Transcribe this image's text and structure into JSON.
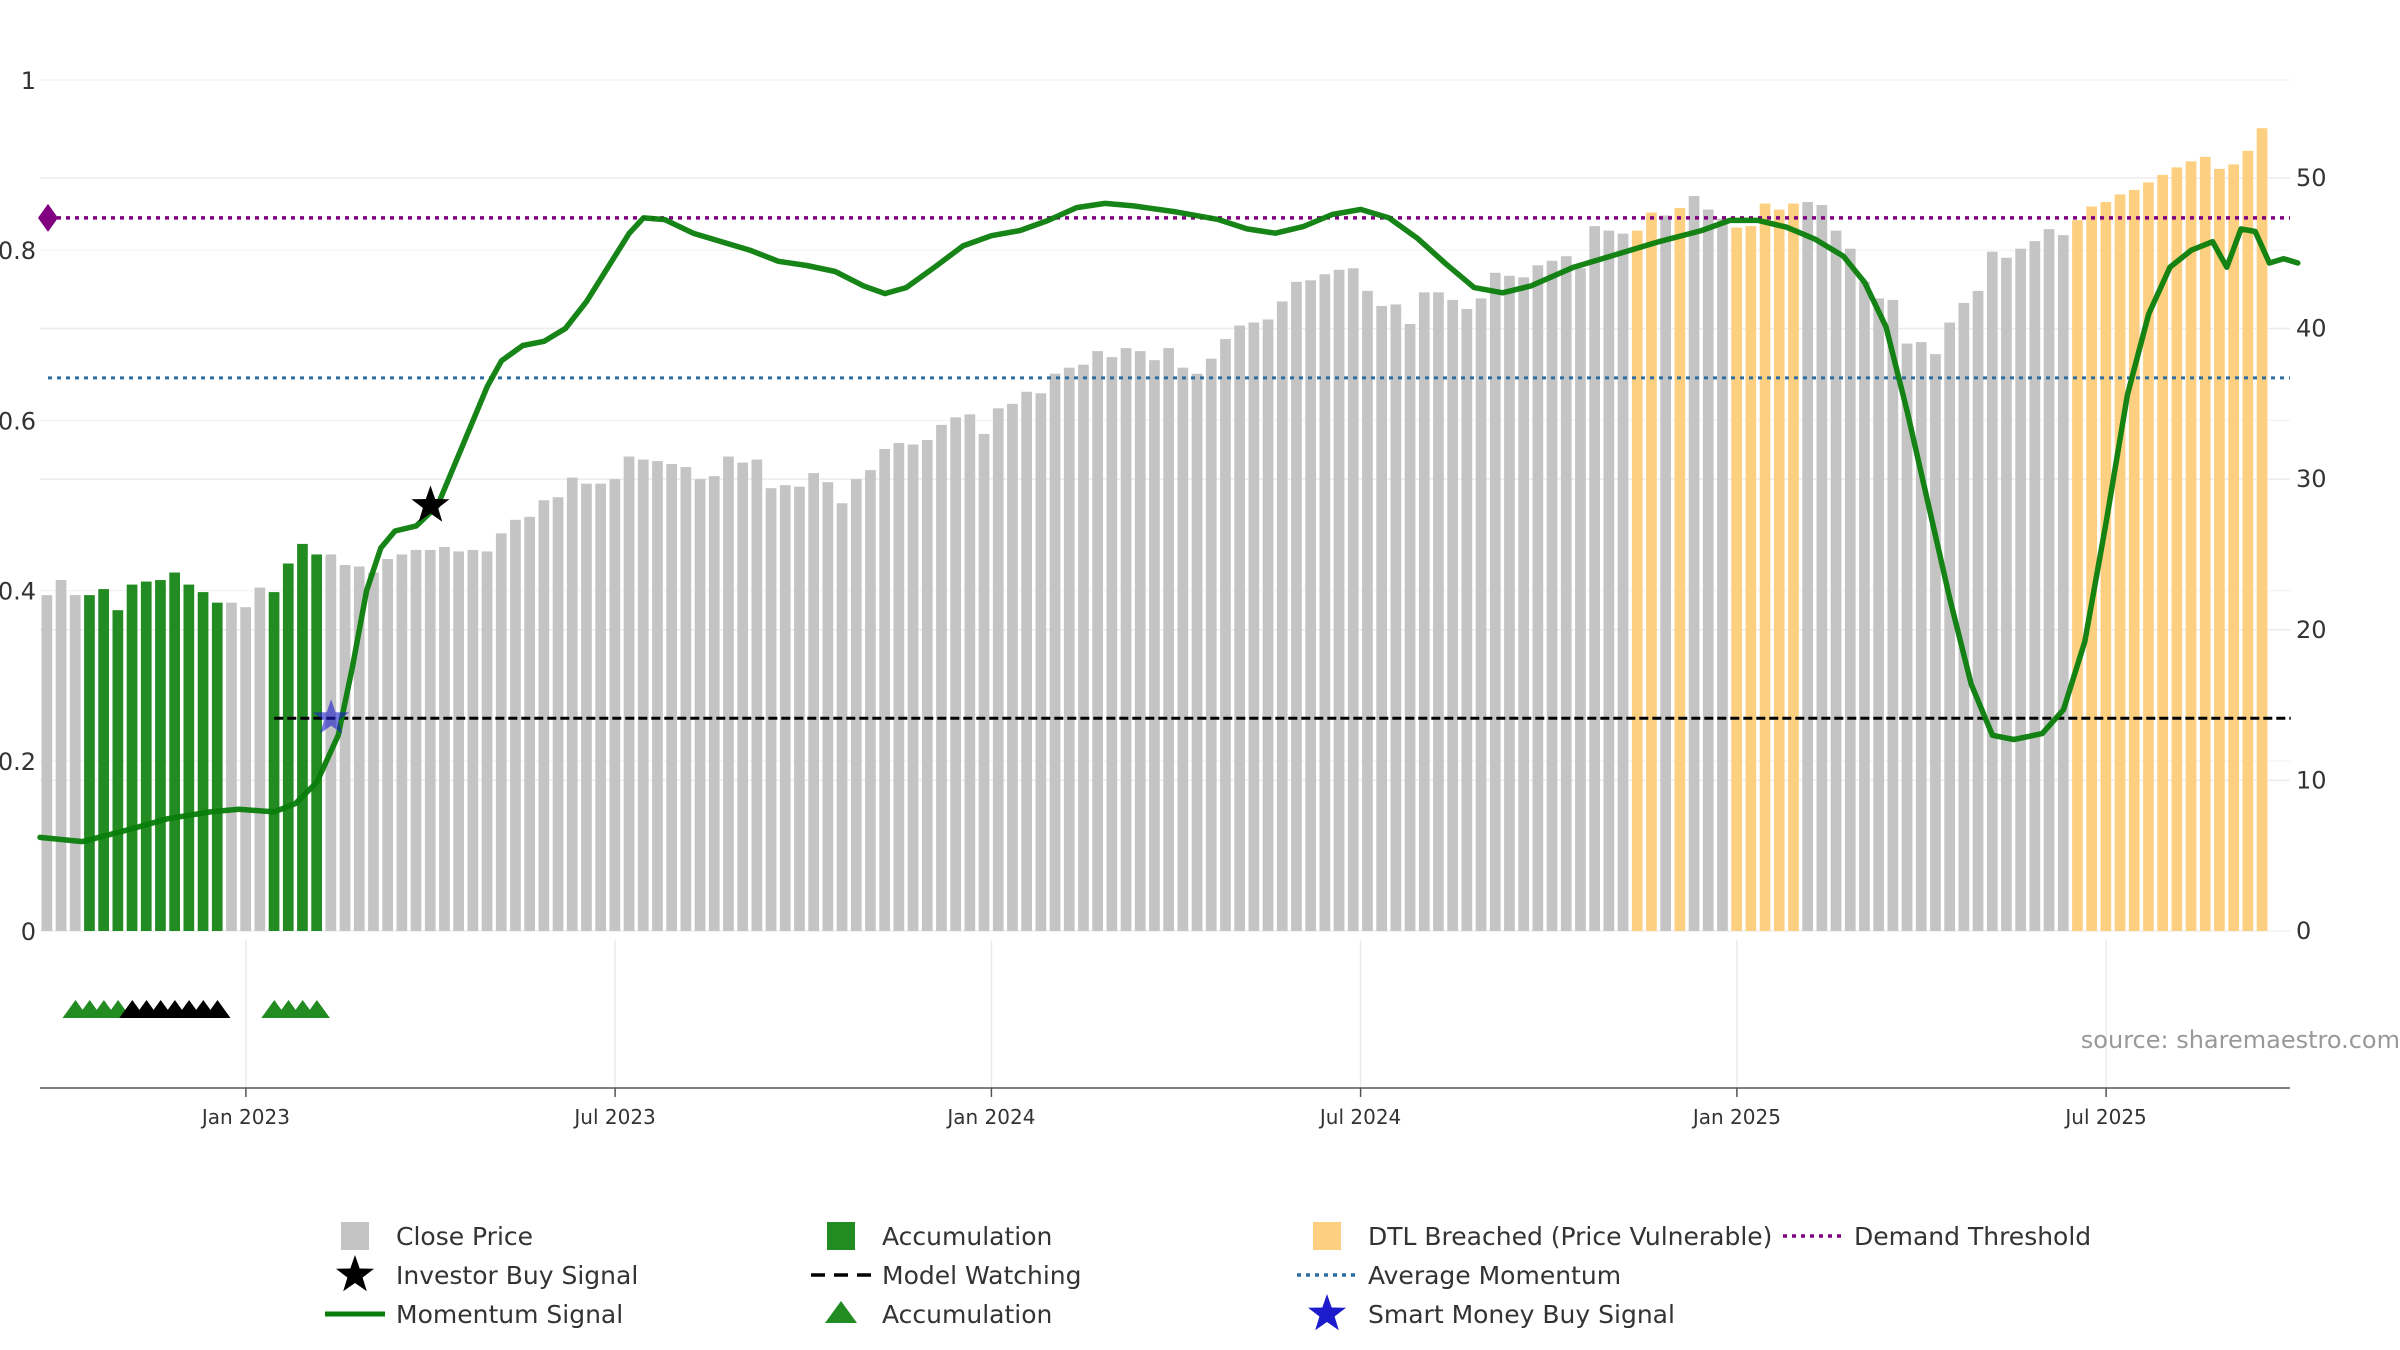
{
  "source_text": "source: sharemaestro.com",
  "colors": {
    "close": "#c4c4c4",
    "accumulation": "#228b22",
    "dtl": "#fdd081",
    "momentum": "#0a7d0a",
    "average": "#2e6e9e",
    "demand": "#800080",
    "watching": "#000000",
    "smart_money": "#1c1ccc"
  },
  "chart_data": {
    "type": "bar",
    "title": "",
    "xlabel": "",
    "ylabel": "",
    "y_left": {
      "ticks": [
        0,
        0.2,
        0.4,
        0.6,
        0.8,
        1
      ],
      "tick_labels": [
        "0",
        "0.2",
        "0.4",
        "0.6",
        "0.8",
        "1"
      ],
      "range": [
        0,
        1
      ]
    },
    "y_right": {
      "ticks": [
        0,
        10,
        20,
        30,
        40,
        50
      ],
      "tick_labels": [
        "0",
        "10",
        "20",
        "30",
        "40",
        "50"
      ],
      "range": [
        0,
        56.5
      ]
    },
    "x_ticks": [
      {
        "label": "Jan 2023",
        "week": 14.5
      },
      {
        "label": "Jul 2023",
        "week": 40.5
      },
      {
        "label": "Jan 2024",
        "week": 67
      },
      {
        "label": "Jul 2024",
        "week": 93
      },
      {
        "label": "Jan 2025",
        "week": 119.5
      },
      {
        "label": "Jul 2025",
        "week": 145.5
      }
    ],
    "close_price": [
      22.3,
      23.3,
      22.3,
      22.3,
      22.7,
      21.3,
      23.0,
      23.2,
      23.3,
      23.8,
      23.0,
      22.5,
      21.8,
      21.8,
      21.5,
      22.8,
      22.5,
      24.4,
      25.7,
      25.0,
      25.0,
      24.3,
      24.2,
      23.8,
      24.7,
      25.0,
      25.3,
      25.3,
      25.5,
      25.2,
      25.3,
      25.2,
      26.4,
      27.3,
      27.5,
      28.6,
      28.8,
      30.1,
      29.7,
      29.7,
      30.0,
      31.5,
      31.3,
      31.2,
      31.0,
      30.8,
      30.0,
      30.2,
      31.5,
      31.1,
      31.3,
      29.4,
      29.6,
      29.5,
      30.4,
      29.8,
      28.4,
      30.0,
      30.6,
      32.0,
      32.4,
      32.3,
      32.6,
      33.6,
      34.1,
      34.3,
      33.0,
      34.7,
      35.0,
      35.8,
      35.7,
      37.0,
      37.4,
      37.6,
      38.5,
      38.1,
      38.7,
      38.5,
      37.9,
      38.7,
      37.4,
      37.0,
      38.0,
      39.3,
      40.2,
      40.4,
      40.6,
      41.8,
      43.1,
      43.2,
      43.6,
      43.9,
      44.0,
      42.5,
      41.5,
      41.6,
      40.3,
      42.4,
      42.4,
      41.9,
      41.3,
      42.0,
      43.7,
      43.5,
      43.4,
      44.2,
      44.5,
      44.8,
      44.0,
      46.8,
      46.5,
      46.3,
      46.5,
      47.7,
      47.5,
      48.0,
      48.8,
      47.9,
      47.3,
      46.7,
      46.8,
      48.3,
      47.9,
      48.3,
      48.4,
      48.2,
      46.5,
      45.3,
      43.1,
      42.0,
      41.9,
      39.0,
      39.1,
      38.3,
      40.4,
      41.7,
      42.5,
      45.1,
      44.7,
      45.3,
      45.8,
      46.6,
      46.2,
      47.2,
      48.1,
      48.4,
      48.9,
      49.2,
      49.7,
      50.2,
      50.7,
      51.1,
      51.4,
      50.6,
      50.9,
      51.8,
      53.3
    ],
    "bar_category": [
      "c",
      "c",
      "c",
      "a",
      "a",
      "a",
      "a",
      "a",
      "a",
      "a",
      "a",
      "a",
      "a",
      "c",
      "c",
      "c",
      "a",
      "a",
      "a",
      "a",
      "c",
      "c",
      "c",
      "c",
      "c",
      "c",
      "c",
      "c",
      "c",
      "c",
      "c",
      "c",
      "c",
      "c",
      "c",
      "c",
      "c",
      "c",
      "c",
      "c",
      "c",
      "c",
      "c",
      "c",
      "c",
      "c",
      "c",
      "c",
      "c",
      "c",
      "c",
      "c",
      "c",
      "c",
      "c",
      "c",
      "c",
      "c",
      "c",
      "c",
      "c",
      "c",
      "c",
      "c",
      "c",
      "c",
      "c",
      "c",
      "c",
      "c",
      "c",
      "c",
      "c",
      "c",
      "c",
      "c",
      "c",
      "c",
      "c",
      "c",
      "c",
      "c",
      "c",
      "c",
      "c",
      "c",
      "c",
      "c",
      "c",
      "c",
      "c",
      "c",
      "c",
      "c",
      "c",
      "c",
      "c",
      "c",
      "c",
      "c",
      "c",
      "c",
      "c",
      "c",
      "c",
      "c",
      "c",
      "c",
      "c",
      "c",
      "c",
      "c",
      "d",
      "d",
      "c",
      "d",
      "c",
      "c",
      "c",
      "d",
      "d",
      "d",
      "d",
      "d",
      "c",
      "c",
      "c",
      "c",
      "c",
      "c",
      "c",
      "c",
      "c",
      "c",
      "c",
      "c",
      "c",
      "c",
      "c",
      "c",
      "c",
      "c",
      "c",
      "d",
      "d",
      "d",
      "d",
      "d",
      "d",
      "d",
      "d",
      "d",
      "d",
      "d",
      "d",
      "d",
      "d"
    ],
    "momentum": [
      [
        0,
        0.11
      ],
      [
        3,
        0.105
      ],
      [
        6,
        0.118
      ],
      [
        9,
        0.132
      ],
      [
        12,
        0.14
      ],
      [
        14,
        0.143
      ],
      [
        16.5,
        0.14
      ],
      [
        18,
        0.15
      ],
      [
        19.5,
        0.175
      ],
      [
        21,
        0.23
      ],
      [
        22,
        0.31
      ],
      [
        23,
        0.4
      ],
      [
        24,
        0.45
      ],
      [
        25,
        0.47
      ],
      [
        26.5,
        0.476
      ],
      [
        28,
        0.5
      ],
      [
        30,
        0.58
      ],
      [
        31.5,
        0.64
      ],
      [
        32.5,
        0.67
      ],
      [
        34,
        0.688
      ],
      [
        35.5,
        0.693
      ],
      [
        37,
        0.708
      ],
      [
        38.5,
        0.74
      ],
      [
        40,
        0.78
      ],
      [
        41.5,
        0.82
      ],
      [
        42.5,
        0.838
      ],
      [
        44,
        0.836
      ],
      [
        46,
        0.82
      ],
      [
        48,
        0.81
      ],
      [
        50,
        0.8
      ],
      [
        52,
        0.787
      ],
      [
        54,
        0.782
      ],
      [
        56,
        0.775
      ],
      [
        58,
        0.758
      ],
      [
        59.5,
        0.749
      ],
      [
        61,
        0.756
      ],
      [
        63,
        0.78
      ],
      [
        65,
        0.805
      ],
      [
        67,
        0.817
      ],
      [
        69,
        0.823
      ],
      [
        71,
        0.835
      ],
      [
        73,
        0.85
      ],
      [
        75,
        0.855
      ],
      [
        77,
        0.852
      ],
      [
        80,
        0.845
      ],
      [
        83,
        0.836
      ],
      [
        85,
        0.825
      ],
      [
        87,
        0.82
      ],
      [
        89,
        0.828
      ],
      [
        91,
        0.842
      ],
      [
        93,
        0.848
      ],
      [
        95,
        0.838
      ],
      [
        97,
        0.814
      ],
      [
        99,
        0.784
      ],
      [
        101,
        0.756
      ],
      [
        103,
        0.75
      ],
      [
        105,
        0.758
      ],
      [
        108,
        0.78
      ],
      [
        111,
        0.795
      ],
      [
        114,
        0.81
      ],
      [
        117,
        0.823
      ],
      [
        119,
        0.835
      ],
      [
        121,
        0.835
      ],
      [
        123,
        0.827
      ],
      [
        125,
        0.813
      ],
      [
        127,
        0.793
      ],
      [
        128.5,
        0.762
      ],
      [
        130,
        0.71
      ],
      [
        131.5,
        0.61
      ],
      [
        133,
        0.5
      ],
      [
        134.5,
        0.39
      ],
      [
        136,
        0.29
      ],
      [
        137.5,
        0.23
      ],
      [
        139,
        0.225
      ],
      [
        141,
        0.232
      ],
      [
        142.5,
        0.26
      ],
      [
        144,
        0.34
      ],
      [
        145.5,
        0.48
      ],
      [
        147,
        0.63
      ],
      [
        148.5,
        0.725
      ],
      [
        150,
        0.78
      ],
      [
        151.5,
        0.8
      ],
      [
        153,
        0.81
      ],
      [
        154,
        0.78
      ],
      [
        155,
        0.825
      ],
      [
        156,
        0.822
      ],
      [
        157,
        0.785
      ],
      [
        158,
        0.79
      ],
      [
        159,
        0.785
      ]
    ],
    "average_momentum": 0.65,
    "demand_threshold": 0.838,
    "model_watching": {
      "level": 0.25,
      "from_week": 16.5,
      "to_week": 158.5
    },
    "investor_buy_signal": {
      "week": 27.5,
      "value": 0.5
    },
    "smart_money_buy_signal": {
      "week": 20.5,
      "value": 0.25
    },
    "demand_marker": {
      "week": 0,
      "value": 0.838
    },
    "accumulation_markers": [
      {
        "week": 2.5,
        "kind": "accumulation"
      },
      {
        "week": 3.5,
        "kind": "accumulation"
      },
      {
        "week": 4.5,
        "kind": "accumulation"
      },
      {
        "week": 5.5,
        "kind": "accumulation"
      },
      {
        "week": 6.5,
        "kind": "watching"
      },
      {
        "week": 7.5,
        "kind": "watching"
      },
      {
        "week": 8.5,
        "kind": "watching"
      },
      {
        "week": 9.5,
        "kind": "watching"
      },
      {
        "week": 10.5,
        "kind": "watching"
      },
      {
        "week": 11.5,
        "kind": "watching"
      },
      {
        "week": 12.5,
        "kind": "watching"
      },
      {
        "week": 16.5,
        "kind": "accumulation"
      },
      {
        "week": 17.5,
        "kind": "accumulation"
      },
      {
        "week": 18.5,
        "kind": "accumulation"
      },
      {
        "week": 19.5,
        "kind": "accumulation"
      }
    ],
    "legend": [
      {
        "label": "Close Price",
        "symbol": "square",
        "key": "close"
      },
      {
        "label": "Investor Buy Signal",
        "symbol": "star",
        "key": "watching"
      },
      {
        "label": "Momentum Signal",
        "symbol": "line",
        "key": "momentum"
      },
      {
        "label": "Accumulation",
        "symbol": "square",
        "key": "accumulation"
      },
      {
        "label": "Model Watching",
        "symbol": "dash",
        "key": "watching"
      },
      {
        "label": "Accumulation",
        "symbol": "triangle",
        "key": "accumulation"
      },
      {
        "label": "DTL Breached (Price Vulnerable)",
        "symbol": "square",
        "key": "dtl"
      },
      {
        "label": "Average Momentum",
        "symbol": "dotted",
        "key": "average"
      },
      {
        "label": "Smart Money Buy Signal",
        "symbol": "star",
        "key": "smart_money"
      },
      {
        "label": "Demand Threshold",
        "symbol": "dotted",
        "key": "demand"
      }
    ]
  }
}
